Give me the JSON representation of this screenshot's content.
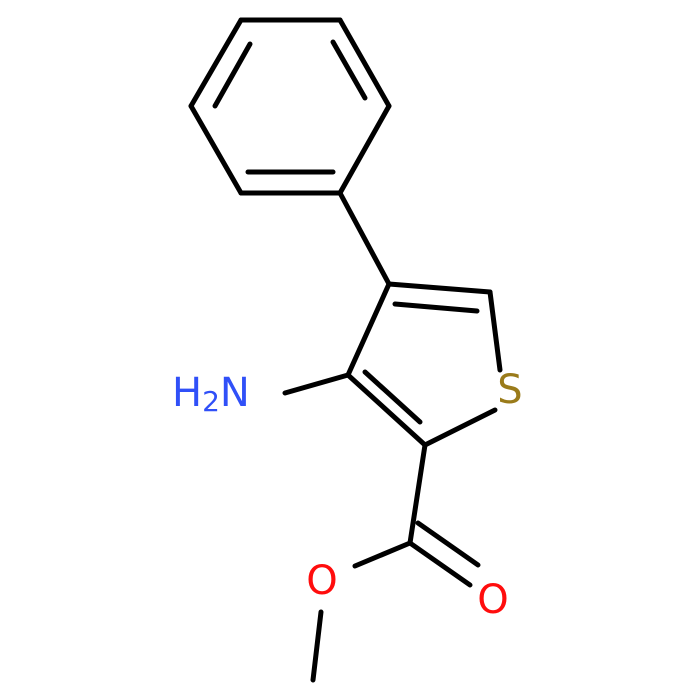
{
  "atoms": {
    "amine": {
      "h": "H",
      "count": "2",
      "n": "N"
    },
    "sulfur": "S",
    "ether_oxygen": "O",
    "carbonyl_oxygen": "O"
  }
}
